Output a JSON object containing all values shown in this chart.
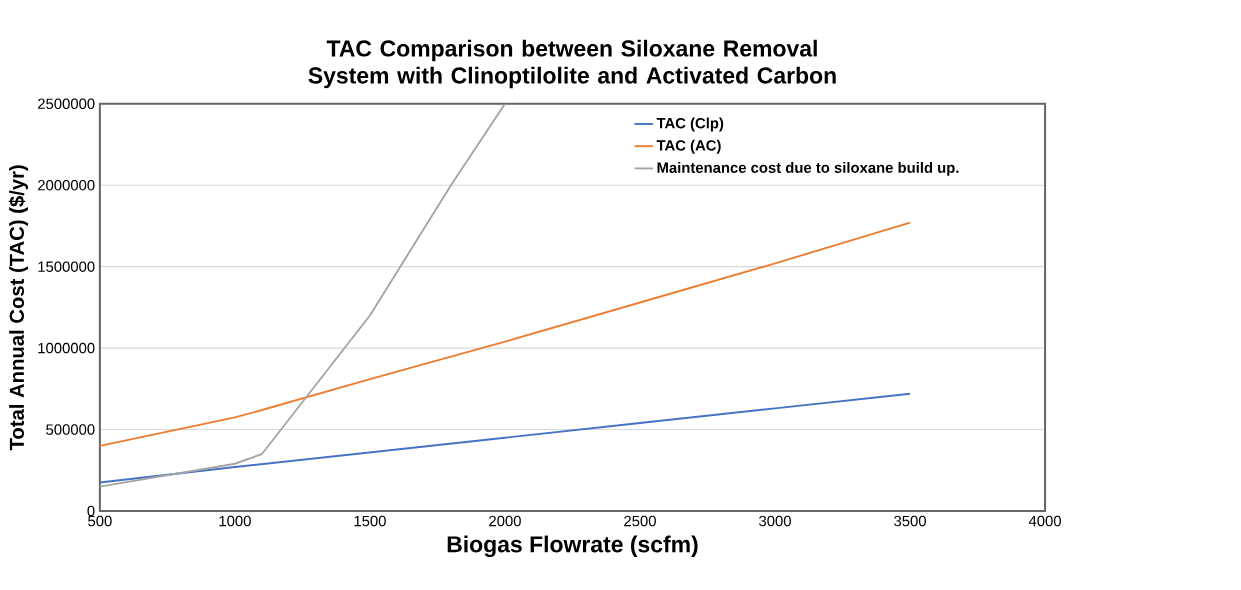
{
  "chart_data": {
    "type": "line",
    "title": "TAC Comparison between Siloxane Removal System with Clinoptilolite and Activated Carbon",
    "xlabel": "Biogas Flowrate (scfm)",
    "ylabel": "Total Annual Cost (TAC) ($/yr)",
    "series": [
      {
        "name": "TAC (Clp)",
        "color": "#4472c4",
        "x": [
          500,
          1000,
          1500,
          2000,
          2500,
          3000,
          3500
        ],
        "values": [
          175000,
          270000,
          360000,
          450000,
          540000,
          630000,
          720000
        ]
      },
      {
        "name": "TAC (AC)",
        "color": "#ed7d31",
        "x": [
          500,
          1000,
          1100,
          1500,
          2000,
          2500,
          3000,
          3500
        ],
        "values": [
          400000,
          575000,
          620000,
          810000,
          1040000,
          1280000,
          1520000,
          1770000
        ]
      },
      {
        "name": "Maintenance cost due to siloxane build up.",
        "color": "#a5a5a5",
        "x": [
          500,
          1000,
          1100,
          1500,
          1800,
          2000
        ],
        "values": [
          150000,
          290000,
          350000,
          1200000,
          2000000,
          2500000
        ]
      }
    ],
    "xlim": [
      500,
      4000
    ],
    "xticks": [
      500,
      1000,
      1500,
      2000,
      2500,
      3000,
      3500,
      4000
    ],
    "ylim": [
      0,
      2500000
    ],
    "yticks": [
      0,
      500000,
      1000000,
      1500000,
      2000000,
      2500000
    ],
    "grid": "y",
    "legend": "top right",
    "marker": "none",
    "line_style": "solid"
  }
}
